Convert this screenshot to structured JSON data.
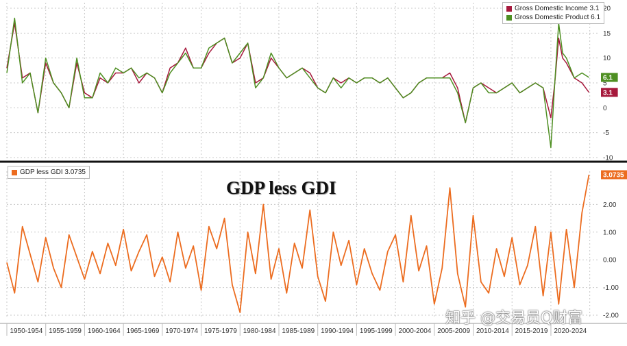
{
  "chart_data": [
    {
      "type": "line",
      "title": "",
      "legend_placement": "top-right",
      "grid": true,
      "ylim": [
        -10,
        20
      ],
      "y_ticks": [
        "20",
        "15",
        "10",
        "5",
        "0",
        "-5",
        "-10"
      ],
      "x_range": [
        1950,
        2026
      ],
      "series": [
        {
          "name": "Gross Domestic Income 3.1",
          "color": "#a6193c",
          "last_value_label": "3.1",
          "x": [
            1950,
            1951,
            1952,
            1953,
            1954,
            1955,
            1956,
            1957,
            1958,
            1959,
            1960,
            1961,
            1962,
            1963,
            1964,
            1965,
            1966,
            1967,
            1968,
            1969,
            1970,
            1971,
            1972,
            1973,
            1974,
            1975,
            1976,
            1977,
            1978,
            1979,
            1980,
            1981,
            1982,
            1983,
            1984,
            1985,
            1986,
            1987,
            1988,
            1989,
            1990,
            1991,
            1992,
            1993,
            1994,
            1995,
            1996,
            1997,
            1998,
            1999,
            2000,
            2001,
            2002,
            2003,
            2004,
            2005,
            2006,
            2007,
            2008,
            2009,
            2010,
            2011,
            2012,
            2013,
            2014,
            2015,
            2016,
            2017,
            2018,
            2019,
            2020,
            2020.5,
            2021,
            2021.5,
            2022,
            2023,
            2024,
            2024.9
          ],
          "y": [
            8,
            17,
            6,
            7,
            -1,
            9,
            5,
            3,
            0,
            9,
            3,
            2,
            6,
            5,
            7,
            7,
            8,
            5,
            7,
            6,
            3,
            8,
            9,
            12,
            8,
            8,
            11,
            13,
            14,
            9,
            10,
            13,
            5,
            6,
            10,
            8,
            6,
            7,
            8,
            7,
            4,
            3,
            6,
            5,
            6,
            5,
            6,
            6,
            5,
            6,
            4,
            2,
            3,
            5,
            6,
            6,
            6,
            7,
            4,
            -3,
            4,
            5,
            4,
            3,
            4,
            5,
            3,
            4,
            5,
            4,
            -2,
            5,
            14,
            10,
            9,
            6,
            5,
            3.1
          ]
        },
        {
          "name": "Gross Domestic Product 6.1",
          "color": "#4e8f22",
          "last_value_label": "6.1",
          "x": [
            1950,
            1951,
            1952,
            1953,
            1954,
            1955,
            1956,
            1957,
            1958,
            1959,
            1960,
            1961,
            1962,
            1963,
            1964,
            1965,
            1966,
            1967,
            1968,
            1969,
            1970,
            1971,
            1972,
            1973,
            1974,
            1975,
            1976,
            1977,
            1978,
            1979,
            1980,
            1981,
            1982,
            1983,
            1984,
            1985,
            1986,
            1987,
            1988,
            1989,
            1990,
            1991,
            1992,
            1993,
            1994,
            1995,
            1996,
            1997,
            1998,
            1999,
            2000,
            2001,
            2002,
            2003,
            2004,
            2005,
            2006,
            2007,
            2008,
            2009,
            2010,
            2011,
            2012,
            2013,
            2014,
            2015,
            2016,
            2017,
            2018,
            2019,
            2020,
            2020.5,
            2021,
            2021.5,
            2022,
            2023,
            2024,
            2024.9
          ],
          "y": [
            7,
            18,
            5,
            7,
            -1,
            10,
            5,
            3,
            0,
            10,
            2,
            2,
            7,
            5,
            8,
            7,
            8,
            6,
            7,
            6,
            3,
            7,
            9,
            11,
            8,
            8,
            12,
            13,
            14,
            9,
            11,
            13,
            4,
            6,
            11,
            8,
            6,
            7,
            8,
            6,
            4,
            3,
            6,
            4,
            6,
            5,
            6,
            6,
            5,
            6,
            4,
            2,
            3,
            5,
            6,
            6,
            6,
            6,
            3,
            -3,
            4,
            5,
            3,
            3,
            4,
            5,
            3,
            4,
            5,
            4,
            -8,
            5,
            17,
            11,
            10,
            6,
            7,
            6.1
          ]
        }
      ]
    },
    {
      "type": "line",
      "title": "GDP less GDI",
      "legend_placement": "top-left",
      "grid": true,
      "ylim": [
        -2,
        3
      ],
      "y_ticks": [
        "2.00",
        "1.00",
        "0.00",
        "-1.00",
        "-2.00"
      ],
      "x_range": [
        1950,
        2026
      ],
      "x_tick_labels": [
        "1950-1954",
        "1955-1959",
        "1960-1964",
        "1965-1969",
        "1970-1974",
        "1975-1979",
        "1980-1984",
        "1985-1989",
        "1990-1994",
        "1995-1999",
        "2000-2004",
        "2005-2009",
        "2010-2014",
        "2015-2019",
        "2020-2024"
      ],
      "series": [
        {
          "name": "GDP less GDI 3.0735",
          "color": "#ec6c1f",
          "last_value_label": "3.0735",
          "x": [
            1950,
            1951,
            1952,
            1953,
            1954,
            1955,
            1956,
            1957,
            1958,
            1959,
            1960,
            1961,
            1962,
            1963,
            1964,
            1965,
            1966,
            1967,
            1968,
            1969,
            1970,
            1971,
            1972,
            1973,
            1974,
            1975,
            1976,
            1977,
            1978,
            1979,
            1980,
            1981,
            1982,
            1983,
            1984,
            1985,
            1986,
            1987,
            1988,
            1989,
            1990,
            1991,
            1992,
            1993,
            1994,
            1995,
            1996,
            1997,
            1998,
            1999,
            2000,
            2001,
            2002,
            2003,
            2004,
            2005,
            2006,
            2007,
            2008,
            2009,
            2010,
            2011,
            2012,
            2013,
            2014,
            2015,
            2016,
            2017,
            2018,
            2019,
            2020,
            2021,
            2022,
            2023,
            2024,
            2024.9
          ],
          "y": [
            -0.1,
            -1.2,
            1.2,
            0.2,
            -0.8,
            0.8,
            -0.3,
            -1.0,
            0.9,
            0.1,
            -0.7,
            0.3,
            -0.5,
            0.6,
            -0.2,
            1.1,
            -0.4,
            0.3,
            0.9,
            -0.6,
            0.1,
            -0.8,
            1.0,
            -0.3,
            0.5,
            -1.1,
            1.2,
            0.4,
            1.5,
            -0.9,
            -1.9,
            1.0,
            -0.5,
            2.0,
            -0.7,
            0.4,
            -1.2,
            0.6,
            -0.3,
            1.8,
            -0.6,
            -1.5,
            1.0,
            -0.2,
            0.7,
            -0.9,
            0.4,
            -0.5,
            -1.1,
            0.3,
            0.9,
            -0.8,
            1.6,
            -0.4,
            0.5,
            -1.6,
            -0.3,
            2.6,
            -0.5,
            -1.7,
            1.6,
            -0.8,
            -1.2,
            0.4,
            -0.6,
            0.8,
            -0.9,
            -0.2,
            1.2,
            -1.3,
            1.0,
            -1.6,
            1.1,
            -1.0,
            1.7,
            3.0735
          ]
        }
      ]
    }
  ],
  "watermark": "知乎 @交易员Q财富"
}
